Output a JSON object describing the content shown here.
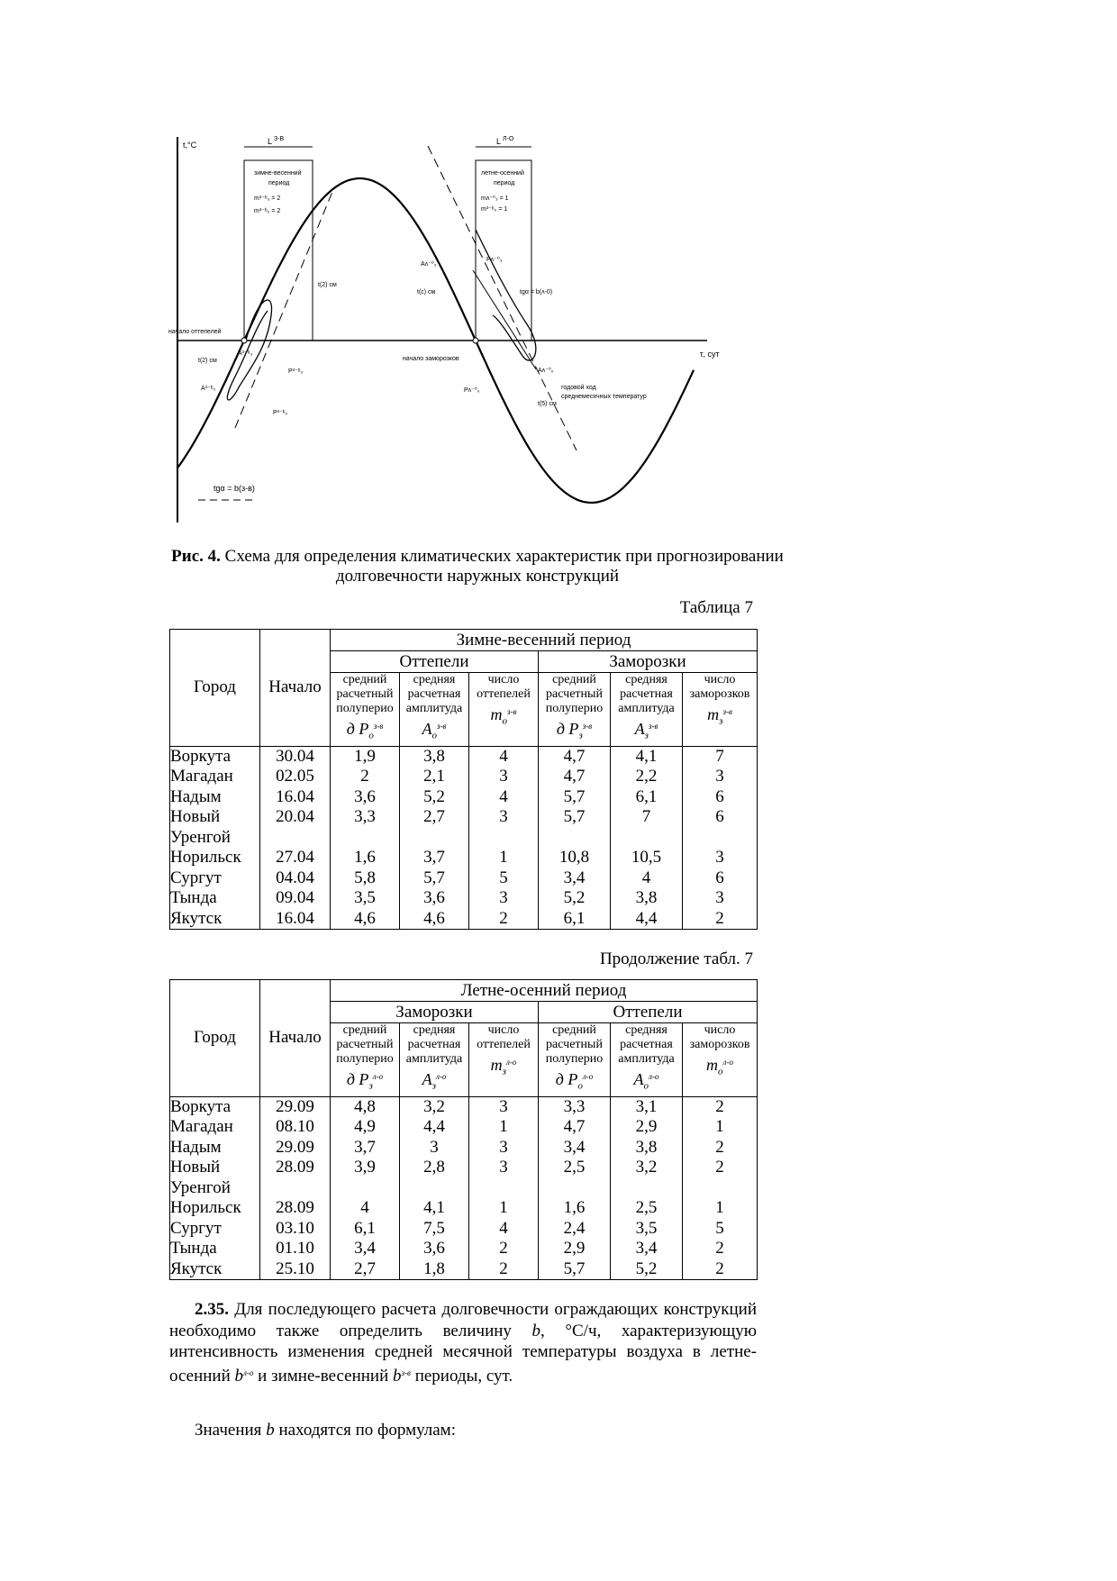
{
  "figure": {
    "y_axis_label": "t,°C",
    "x_axis_label": "τ, сут",
    "L_zv": "L",
    "L_zv_sup": "З-В",
    "L_lo": "L",
    "L_lo_sup": "Л-О",
    "zv_box_title_1": "зимне-весенний",
    "zv_box_title_2": "период",
    "zv_m3": "m³⁻ᵇ₃ = 2",
    "zv_m0": "m³⁻ᵇ₀ = 2",
    "lo_box_title_1": "летне-осенний",
    "lo_box_title_2": "период",
    "lo_m3": "mᴧ⁻⁰₃ = 1",
    "lo_m0": "m³⁻ᵇ₀ = 1",
    "start_thaw": "начало оттепелей",
    "start_frost": "начало заморозков",
    "t_sm2_top": "t(2) см",
    "t_sm2_left": "t(2) см",
    "A3_zv": "A³⁻ᵇ₃",
    "P3_zv": "P³⁻ᵇ₃",
    "A0_zv": "A³⁻ᵇ₀",
    "P0_zv": "P³⁻ᵇ₀",
    "A3_lo": "Aᴧ⁻⁰₃",
    "P3_lo": "Pᴧ⁻⁰₃",
    "t_smc": "t(c) см",
    "tg_lo": "tgα = b(ᴧ-0)",
    "A0_lo": "Aᴧ⁻⁰₀",
    "P0_lo": "Pᴧ⁻⁰₀",
    "t_sm5": "t(5) см",
    "annual_1": "годовой ход",
    "annual_2": "среднемесячных температур",
    "tg_zv": "tgα = b(з-в)"
  },
  "caption": {
    "label": "Рис. 4.",
    "text": " Схема для определения климатических характеристик при прогнозировании долговечности наружных конструкций"
  },
  "table1": {
    "number_label": "Таблица 7",
    "col_city": "Город",
    "col_start": "Начало",
    "period": "Зимне-весенний период",
    "group1": "Оттепели",
    "group2": "Заморозки",
    "h1": "средний расчетный полуперио",
    "h1b": "д P",
    "h1_sub": "о",
    "h1_sup": "з-в",
    "h2": "средняя расчетная амплитуда",
    "h2b": "A",
    "h2_sub": "о",
    "h2_sup": "з-в",
    "h3": "число оттепелей",
    "h3b": "m",
    "h3_sub": "о",
    "h3_sup": "з-в",
    "h4": "средний расчетный полуперио",
    "h4b": "д P",
    "h4_sub": "з",
    "h4_sup": "з-в",
    "h5": "средняя расчетная амплитуда",
    "h5b": "A",
    "h5_sub": "з",
    "h5_sup": "з-в",
    "h6": "число заморозков",
    "h6b": "m",
    "h6_sub": "з",
    "h6_sup": "з-в",
    "rows": [
      {
        "city": "Воркута",
        "start": "30.04",
        "v": [
          "1,9",
          "3,8",
          "4",
          "4,7",
          "4,1",
          "7"
        ]
      },
      {
        "city": "Магадан",
        "start": "02.05",
        "v": [
          "2",
          "2,1",
          "3",
          "4,7",
          "2,2",
          "3"
        ]
      },
      {
        "city": "Надым",
        "start": "16.04",
        "v": [
          "3,6",
          "5,2",
          "4",
          "5,7",
          "6,1",
          "6"
        ]
      },
      {
        "city": "Новый Уренгой",
        "start": "20.04",
        "v": [
          "3,3",
          "2,7",
          "3",
          "5,7",
          "7",
          "6"
        ]
      },
      {
        "city": "Норильск",
        "start": "27.04",
        "v": [
          "1,6",
          "3,7",
          "1",
          "10,8",
          "10,5",
          "3"
        ]
      },
      {
        "city": "Сургут",
        "start": "04.04",
        "v": [
          "5,8",
          "5,7",
          "5",
          "3,4",
          "4",
          "6"
        ]
      },
      {
        "city": "Тында",
        "start": "09.04",
        "v": [
          "3,5",
          "3,6",
          "3",
          "5,2",
          "3,8",
          "3"
        ]
      },
      {
        "city": "Якутск",
        "start": "16.04",
        "v": [
          "4,6",
          "4,6",
          "2",
          "6,1",
          "4,4",
          "2"
        ]
      }
    ]
  },
  "table2": {
    "number_label": "Продолжение табл. 7",
    "col_city": "Город",
    "col_start": "Начало",
    "period": "Летне-осенний период",
    "group1": "Заморозки",
    "group2": "Оттепели",
    "h1": "средний расчетный полуперио",
    "h1b": "д P",
    "h1_sub": "з",
    "h1_sup": "л-о",
    "h2": "средняя расчетная амплитуда",
    "h2b": "A",
    "h2_sub": "з",
    "h2_sup": "л-о",
    "h3": "число оттепелей",
    "h3b": "m",
    "h3_sub": "з",
    "h3_sup": "л-о",
    "h4": "средний расчетный полуперио",
    "h4b": "д P",
    "h4_sub": "о",
    "h4_sup": "л-о",
    "h5": "средняя расчетная амплитуда",
    "h5b": "A",
    "h5_sub": "о",
    "h5_sup": "л-о",
    "h6": "число заморозков",
    "h6b": "m",
    "h6_sub": "о",
    "h6_sup": "л-о",
    "rows": [
      {
        "city": "Воркута",
        "start": "29.09",
        "v": [
          "4,8",
          "3,2",
          "3",
          "3,3",
          "3,1",
          "2"
        ]
      },
      {
        "city": "Магадан",
        "start": "08.10",
        "v": [
          "4,9",
          "4,4",
          "1",
          "4,7",
          "2,9",
          "1"
        ]
      },
      {
        "city": "Надым",
        "start": "29.09",
        "v": [
          "3,7",
          "3",
          "3",
          "3,4",
          "3,8",
          "2"
        ]
      },
      {
        "city": "Новый Уренгой",
        "start": "28.09",
        "v": [
          "3,9",
          "2,8",
          "3",
          "2,5",
          "3,2",
          "2"
        ]
      },
      {
        "city": "Норильск",
        "start": "28.09",
        "v": [
          "4",
          "4,1",
          "1",
          "1,6",
          "2,5",
          "1"
        ]
      },
      {
        "city": "Сургут",
        "start": "03.10",
        "v": [
          "6,1",
          "7,5",
          "4",
          "2,4",
          "3,5",
          "5"
        ]
      },
      {
        "city": "Тында",
        "start": "01.10",
        "v": [
          "3,4",
          "3,6",
          "2",
          "2,9",
          "3,4",
          "2"
        ]
      },
      {
        "city": "Якутск",
        "start": "25.10",
        "v": [
          "2,7",
          "1,8",
          "2",
          "5,7",
          "5,2",
          "2"
        ]
      }
    ]
  },
  "para1": {
    "num": "2.35.",
    "t1": " Для последующего расчета долговечности ограждающих конструкций необходимо также определить величину ",
    "b": "b",
    "t2": ", °С/ч, характеризующую интенсивность изменения средней месячной температуры воздуха в летне-осенний ",
    "b2": "b",
    "sup2": "л-о",
    "t3": " и зимне-весенний ",
    "b3": "b",
    "sup3": "з-в",
    "t4": " периоды, сут."
  },
  "para2": {
    "t1": "Значения ",
    "b": "b",
    "t2": " находятся по формулам:"
  }
}
